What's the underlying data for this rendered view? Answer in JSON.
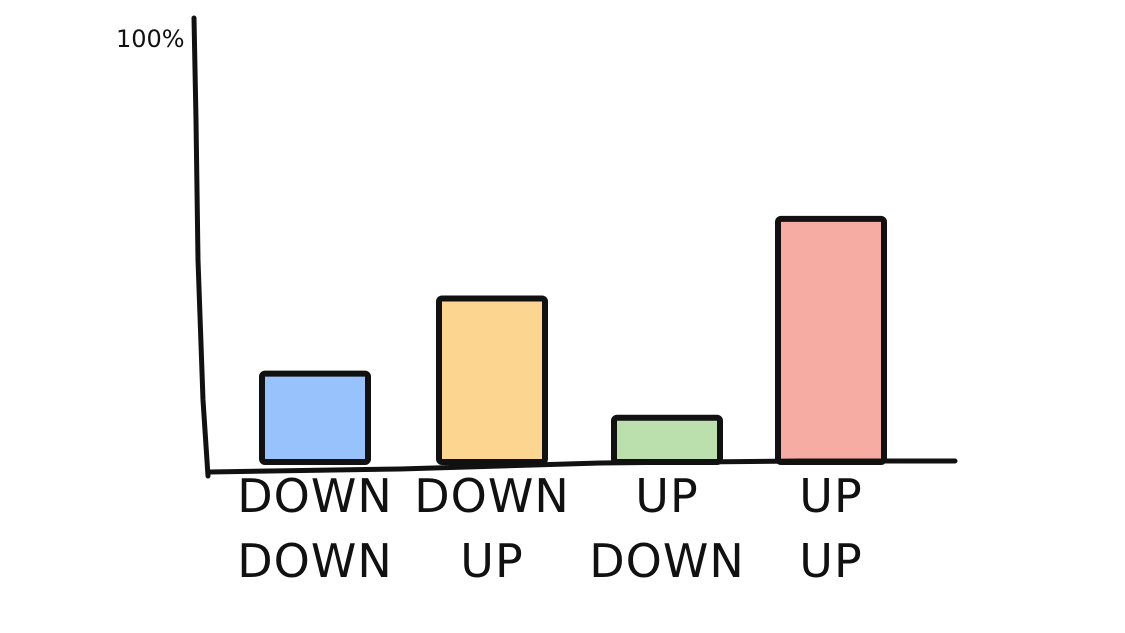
{
  "chart_data": {
    "type": "bar",
    "categories": [
      [
        "DOWN",
        "DOWN"
      ],
      [
        "DOWN",
        "UP"
      ],
      [
        "UP",
        "DOWN"
      ],
      [
        "UP",
        "UP"
      ]
    ],
    "values": [
      20,
      37,
      10,
      55
    ],
    "colors": [
      "#98c2fb",
      "#fcd591",
      "#bce0ad",
      "#f6aca3"
    ],
    "ylim": [
      0,
      100
    ],
    "ymax_label": "100%",
    "xlabel": "",
    "ylabel": "",
    "grid": false
  }
}
